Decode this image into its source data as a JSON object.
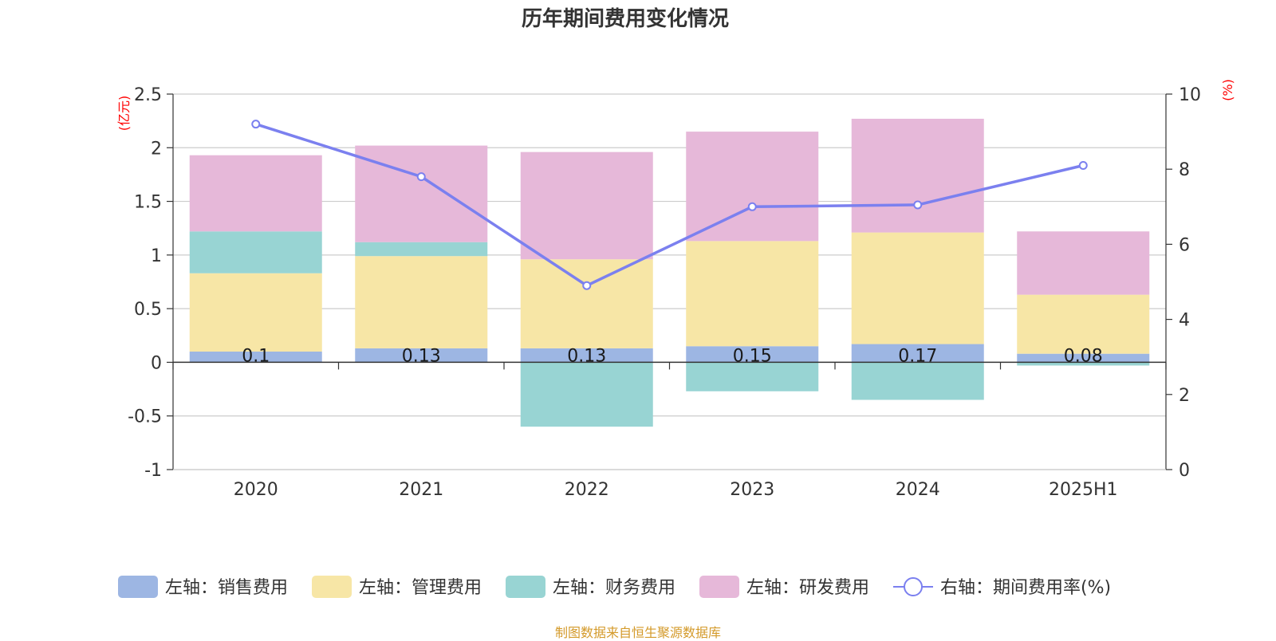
{
  "footer": "制图数据来自恒生聚源数据库",
  "colors": {
    "sales": "#9db6e3",
    "admin": "#f7e6a6",
    "finance": "#98d4d3",
    "rnd": "#e6b8d9",
    "rate_line": "#7b80ef",
    "unit_text": "#ff0000",
    "footer_text": "#d49a2a"
  },
  "chart_data": {
    "type": "bar",
    "title": "历年期间费用变化情况",
    "categories": [
      "2020",
      "2021",
      "2022",
      "2023",
      "2024",
      "2025H1"
    ],
    "left_axis": {
      "unit": "(亿元)",
      "ylim": [
        -1,
        2.5
      ],
      "ticks": [
        "-1",
        "-0.5",
        "0",
        "0.5",
        "1",
        "1.5",
        "2",
        "2.5"
      ]
    },
    "right_axis": {
      "unit": "(%)",
      "ylim": [
        0,
        10
      ],
      "ticks": [
        "0",
        "2",
        "4",
        "6",
        "8",
        "10"
      ]
    },
    "grid": true,
    "legend_position": "bottom",
    "series": [
      {
        "name": "左轴：销售费用",
        "axis": "left",
        "stacked": true,
        "color_key": "sales",
        "values": [
          0.1,
          0.13,
          0.13,
          0.15,
          0.17,
          0.08
        ],
        "labels": [
          "0.1",
          "0.13",
          "0.13",
          "0.15",
          "0.17",
          "0.08"
        ]
      },
      {
        "name": "左轴：管理费用",
        "axis": "left",
        "stacked": true,
        "color_key": "admin",
        "values": [
          0.73,
          0.86,
          0.83,
          0.98,
          1.04,
          0.55
        ]
      },
      {
        "name": "左轴：财务费用",
        "axis": "left",
        "stacked": true,
        "color_key": "finance",
        "values": [
          0.39,
          0.13,
          -0.6,
          -0.27,
          -0.35,
          -0.03
        ]
      },
      {
        "name": "左轴：研发费用",
        "axis": "left",
        "stacked": true,
        "color_key": "rnd",
        "values": [
          0.71,
          0.9,
          1.0,
          1.02,
          1.06,
          0.59
        ]
      },
      {
        "name": "右轴：期间费用率(%)",
        "axis": "right",
        "type": "line",
        "color_key": "rate_line",
        "values": [
          9.2,
          7.8,
          4.9,
          7.0,
          7.05,
          8.1
        ]
      }
    ]
  }
}
